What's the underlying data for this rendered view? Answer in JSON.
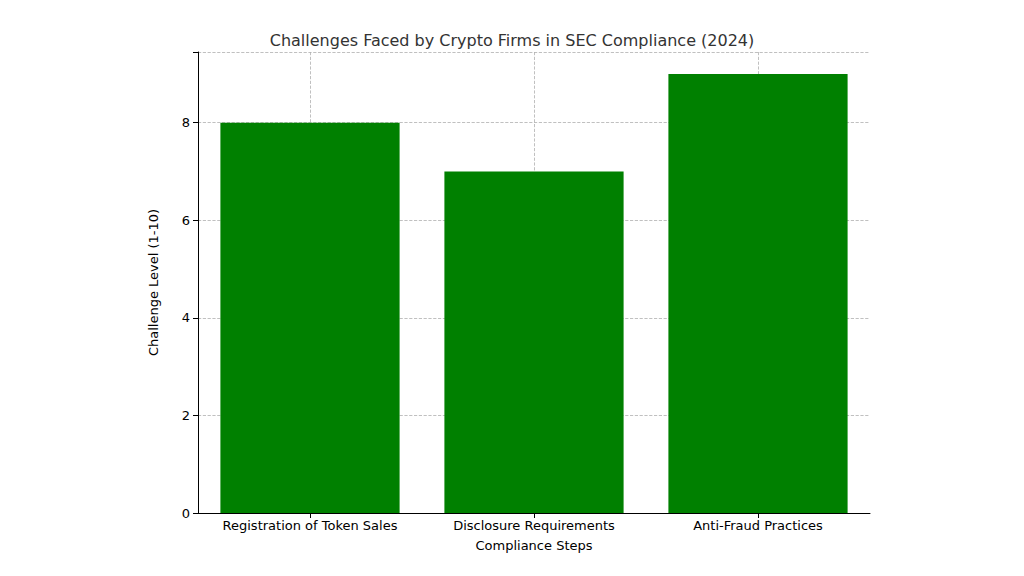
{
  "chart_data": {
    "type": "bar",
    "title": "Challenges Faced by Crypto Firms in SEC Compliance (2024)",
    "x_label": "Compliance Steps",
    "y_label": "Challenge Level (1-10)",
    "categories": [
      "Registration of Token Sales",
      "Disclosure Requirements",
      "Anti-Fraud Practices"
    ],
    "values": [
      8,
      7,
      9
    ],
    "color": "#008000",
    "ylim": [
      0,
      9.45
    ],
    "yticks": [
      0,
      2,
      4,
      6,
      8
    ],
    "grid": true
  }
}
